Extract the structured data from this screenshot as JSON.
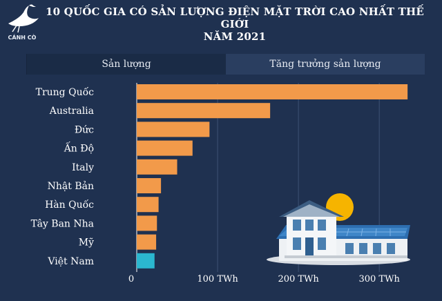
{
  "header": {
    "logo_text": "CÁNH CÒ",
    "title_line1": "10 QUỐC GIA CÓ SẢN LƯỢNG ĐIỆN MẶT TRỜI CAO NHẤT THẾ GIỚI",
    "title_line2": "NĂM 2021"
  },
  "tabs": [
    {
      "label": "Sản lượng",
      "active": true
    },
    {
      "label": "Tăng trưởng sản lượng",
      "active": false
    }
  ],
  "colors": {
    "background": "#1f3150",
    "bar_default": "#f29a4a",
    "bar_highlight": "#2bb7cf",
    "gridline": "#3d5274",
    "text": "#ffffff"
  },
  "chart_data": {
    "type": "bar",
    "orientation": "horizontal",
    "categories": [
      "Trung Quốc",
      "Australia",
      "Đức",
      "Ấn Độ",
      "Italy",
      "Nhật Bản",
      "Hàn Quốc",
      "Tây Ban Nha",
      "Mỹ",
      "Việt Nam"
    ],
    "values": [
      335,
      165,
      90,
      69,
      50,
      30,
      27,
      25,
      24,
      22
    ],
    "highlight": "Việt Nam",
    "xlim": [
      0,
      340
    ],
    "xticks": [
      0,
      100,
      200,
      300
    ],
    "xtick_labels": [
      "0",
      "100 TWh",
      "200 TWh",
      "300 TWh"
    ],
    "grid": true,
    "xlabel": "",
    "ylabel": ""
  }
}
